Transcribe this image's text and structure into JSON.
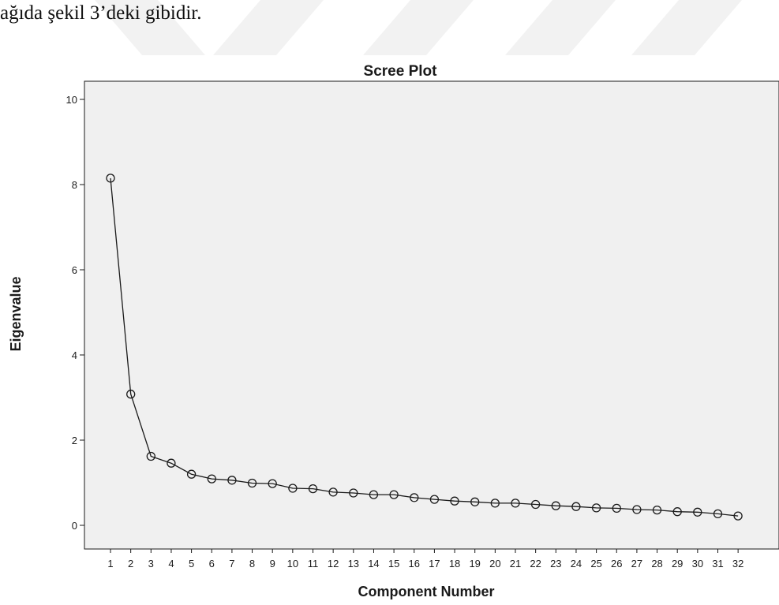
{
  "document": {
    "caption": "ağıda şekil 3’deki gibidir."
  },
  "chart_data": {
    "type": "line",
    "title": "Scree Plot",
    "xlabel": "Component Number",
    "ylabel": "Eigenvalue",
    "x": [
      1,
      2,
      3,
      4,
      5,
      6,
      7,
      8,
      9,
      10,
      11,
      12,
      13,
      14,
      15,
      16,
      17,
      18,
      19,
      20,
      21,
      22,
      23,
      24,
      25,
      26,
      27,
      28,
      29,
      30,
      31,
      32
    ],
    "values": [
      8.15,
      3.08,
      1.62,
      1.46,
      1.2,
      1.09,
      1.06,
      0.99,
      0.98,
      0.87,
      0.86,
      0.78,
      0.76,
      0.72,
      0.72,
      0.65,
      0.61,
      0.57,
      0.55,
      0.52,
      0.52,
      0.49,
      0.46,
      0.44,
      0.41,
      0.4,
      0.37,
      0.36,
      0.32,
      0.31,
      0.27,
      0.22
    ],
    "ylim": [
      0,
      10
    ],
    "yticks": [
      0,
      2,
      4,
      6,
      8,
      10
    ],
    "grid": false,
    "marker": "open-circle",
    "colors": {
      "plot_background": "#f0f0f0",
      "line": "#1a1a1a",
      "marker": "#1a1a1a",
      "watermark": "#f1f1f1"
    }
  }
}
